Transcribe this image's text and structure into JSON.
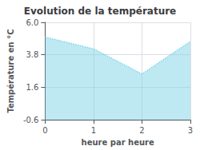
{
  "chart_data": {
    "type": "area",
    "title": "Evolution de la température",
    "xlabel": "heure par heure",
    "ylabel": "Température en °C",
    "x": [
      0,
      1,
      2,
      3
    ],
    "values": [
      5.0,
      4.2,
      2.5,
      4.7
    ],
    "color": "#7dd4e8",
    "line_style": "dotted",
    "xlim": [
      0,
      3
    ],
    "xticks": [
      0,
      1,
      2,
      3
    ],
    "ylim": [
      -0.6,
      6.0
    ],
    "yticks": [
      -0.6,
      1.6,
      3.8,
      {
        "value": 6.0,
        "label": "6.0"
      }
    ],
    "grid": true
  }
}
